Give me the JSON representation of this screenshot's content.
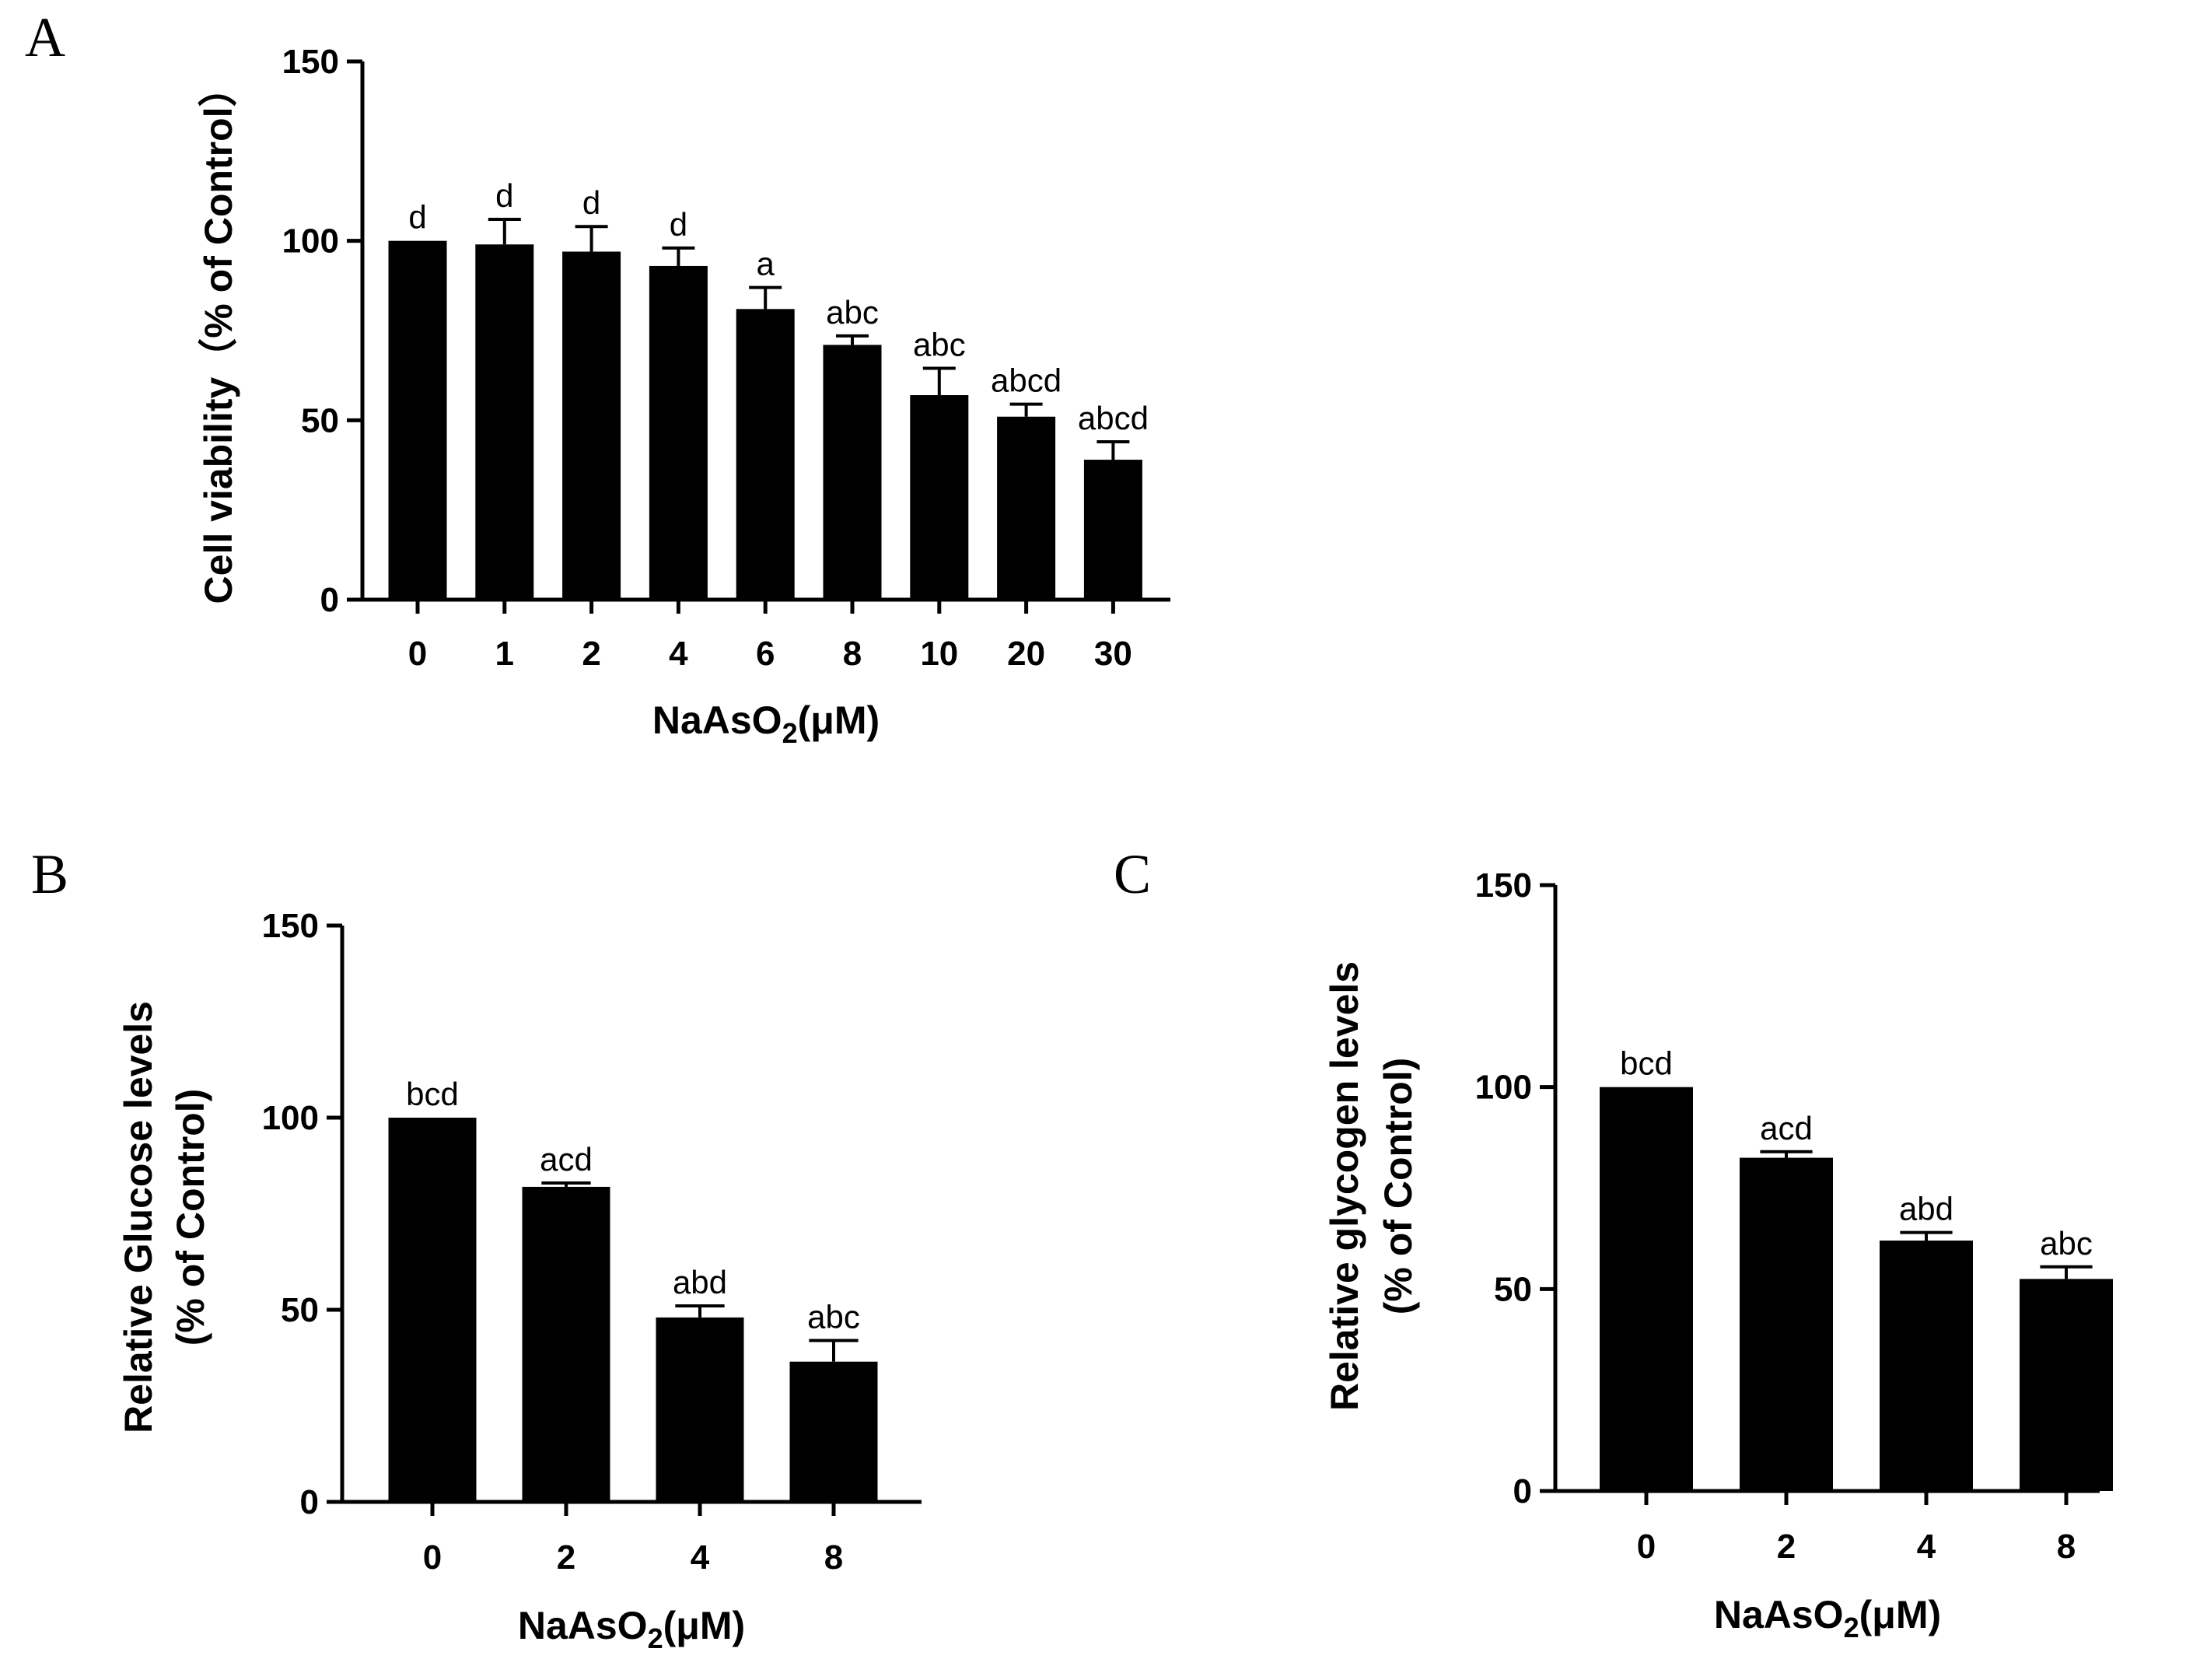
{
  "chart_data": [
    {
      "panel": "A",
      "type": "bar",
      "categories": [
        "0",
        "1",
        "2",
        "4",
        "6",
        "8",
        "10",
        "20",
        "30"
      ],
      "values": [
        100,
        99,
        97,
        93,
        81,
        71,
        57,
        51,
        39
      ],
      "errors": [
        0,
        7,
        7,
        5,
        6,
        2.5,
        7.5,
        3.5,
        5
      ],
      "annotations": [
        "d",
        "d",
        "d",
        "d",
        "a",
        "abc",
        "abc",
        "abcd",
        "abcd"
      ],
      "ylabel": "Cell viability（% of Control）",
      "xlabel": "NaAsO",
      "xlabel_sub": "2",
      "xlabel_unit": "(μM)",
      "ylim": [
        0,
        150
      ],
      "yticks": [
        "0",
        "50",
        "100",
        "150"
      ]
    },
    {
      "panel": "B",
      "type": "bar",
      "categories": [
        "0",
        "2",
        "4",
        "8"
      ],
      "values": [
        100,
        82,
        48,
        36.5
      ],
      "errors": [
        0,
        1,
        3,
        5.5
      ],
      "annotations": [
        "bcd",
        "acd",
        "abd",
        "abc"
      ],
      "ylabel": "Relative Glucose levels",
      "ylabel2": "(% of Control)",
      "xlabel": "NaAsO",
      "xlabel_sub": "2",
      "xlabel_unit": "(μM)",
      "ylim": [
        0,
        150
      ],
      "yticks": [
        "0",
        "50",
        "100",
        "150"
      ]
    },
    {
      "panel": "C",
      "type": "bar",
      "categories": [
        "0",
        "2",
        "4",
        "8"
      ],
      "values": [
        100,
        82.5,
        62,
        52.5
      ],
      "errors": [
        0,
        1.5,
        2,
        3
      ],
      "annotations": [
        "bcd",
        "acd",
        "abd",
        "abc"
      ],
      "ylabel": "Relative glycogen levels",
      "ylabel2": "(% of Control)",
      "xlabel": "NaAsO",
      "xlabel_sub": "2",
      "xlabel_unit": "(μM)",
      "ylim": [
        0,
        150
      ],
      "yticks": [
        "0",
        "50",
        "100",
        "150"
      ]
    }
  ]
}
